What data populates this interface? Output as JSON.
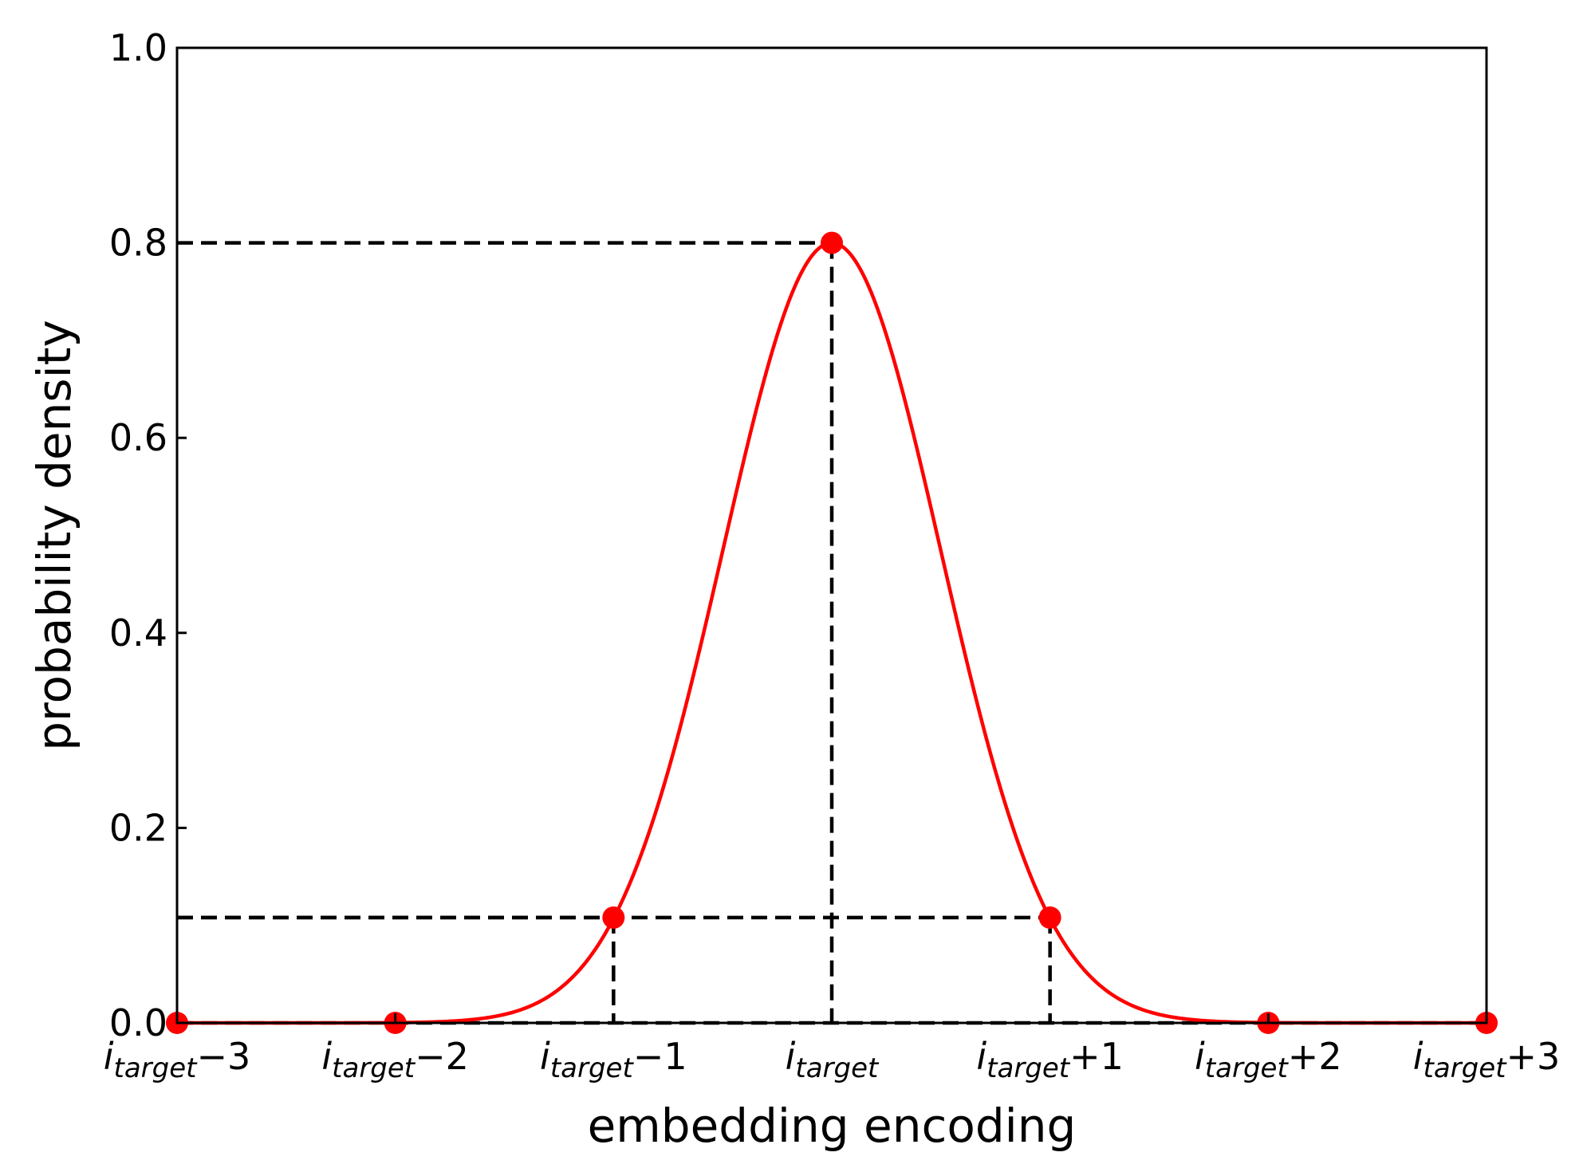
{
  "chart_data": {
    "type": "line",
    "xlabel": "embedding encoding",
    "ylabel": "probability density",
    "xlim": [
      -3,
      3
    ],
    "ylim": [
      0,
      1.0
    ],
    "grid": false,
    "y_ticks": [
      "0.0",
      "0.2",
      "0.4",
      "0.6",
      "0.8",
      "1.0"
    ],
    "y_tick_values": [
      0,
      0.2,
      0.4,
      0.6,
      0.8,
      1.0
    ],
    "x_ticks": [
      {
        "value": -3,
        "base": "i",
        "sub": "target",
        "suffix": "−3"
      },
      {
        "value": -2,
        "base": "i",
        "sub": "target",
        "suffix": "−2"
      },
      {
        "value": -1,
        "base": "i",
        "sub": "target",
        "suffix": "−1"
      },
      {
        "value": 0,
        "base": "i",
        "sub": "target",
        "suffix": ""
      },
      {
        "value": 1,
        "base": "i",
        "sub": "target",
        "suffix": "+1"
      },
      {
        "value": 2,
        "base": "i",
        "sub": "target",
        "suffix": "+2"
      },
      {
        "value": 3,
        "base": "i",
        "sub": "target",
        "suffix": "+3"
      }
    ],
    "series": [
      {
        "curve": "gaussian",
        "peak": 0.8,
        "center": 0,
        "sigma": 0.4987,
        "color": "#ff0000"
      }
    ],
    "points": [
      {
        "x": -3,
        "y": 0.0
      },
      {
        "x": -2,
        "y": 0.0
      },
      {
        "x": -1,
        "y": 0.108
      },
      {
        "x": 0,
        "y": 0.8
      },
      {
        "x": 1,
        "y": 0.108
      },
      {
        "x": 2,
        "y": 0.0
      },
      {
        "x": 3,
        "y": 0.0
      }
    ],
    "guide_lines": [
      {
        "x": 0,
        "y": 0.8
      },
      {
        "x": -1,
        "y": 0.108
      },
      {
        "x": 1,
        "y": 0.108
      }
    ],
    "guide_color": "#000000",
    "point_color": "#ff0000"
  }
}
